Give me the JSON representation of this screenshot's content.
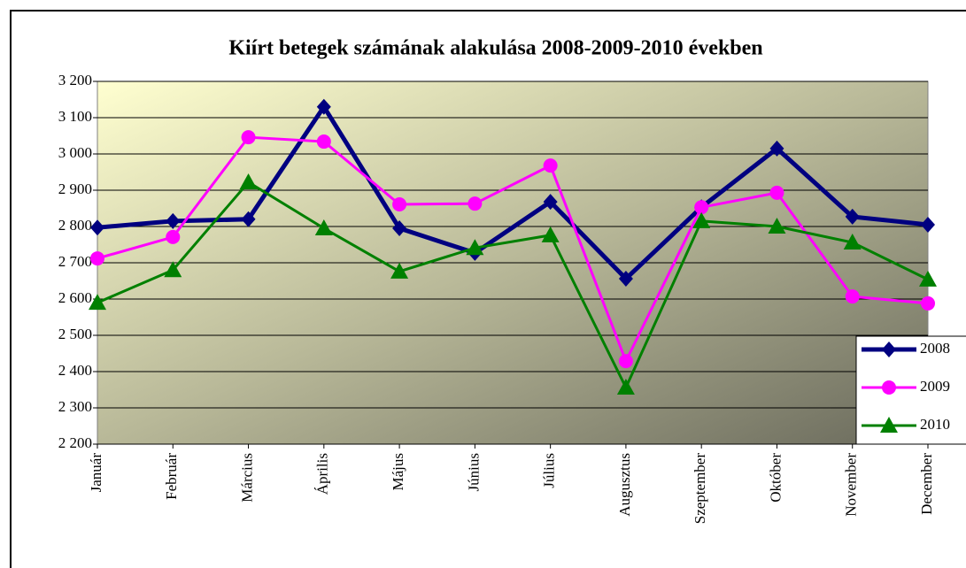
{
  "chart_data": {
    "type": "line",
    "title": "Kiírt betegek számának alakulása 2008-2009-2010 években",
    "categories": [
      "Január",
      "Február",
      "Március",
      "Április",
      "Május",
      "Június",
      "Július",
      "Augusztus",
      "Szeptember",
      "Október",
      "November",
      "December"
    ],
    "series": [
      {
        "name": "2008",
        "color": "#000080",
        "marker": "diamond",
        "values": [
          2797,
          2815,
          2820,
          3130,
          2795,
          2727,
          2868,
          2656,
          2853,
          3015,
          2827,
          2805
        ]
      },
      {
        "name": "2009",
        "color": "#ff00ff",
        "marker": "circle",
        "values": [
          2712,
          2771,
          3046,
          3034,
          2861,
          2863,
          2968,
          2429,
          2853,
          2893,
          2607,
          2588
        ]
      },
      {
        "name": "2010",
        "color": "#008000",
        "marker": "triangle",
        "values": [
          2590,
          2680,
          2922,
          2795,
          2676,
          2741,
          2776,
          2356,
          2815,
          2800,
          2756,
          2654
        ]
      }
    ],
    "ylim": [
      2200,
      3200
    ],
    "yticks": [
      {
        "value": 2200,
        "label": "2 200"
      },
      {
        "value": 2300,
        "label": "2 300"
      },
      {
        "value": 2400,
        "label": "2 400"
      },
      {
        "value": 2500,
        "label": "2 500"
      },
      {
        "value": 2600,
        "label": "2 600"
      },
      {
        "value": 2700,
        "label": "2 700"
      },
      {
        "value": 2800,
        "label": "2 800"
      },
      {
        "value": 2900,
        "label": "2 900"
      },
      {
        "value": 3000,
        "label": "3 000"
      },
      {
        "value": 3100,
        "label": "3 100"
      },
      {
        "value": 3200,
        "label": "3 200"
      }
    ],
    "grid": true,
    "legend": "right"
  }
}
